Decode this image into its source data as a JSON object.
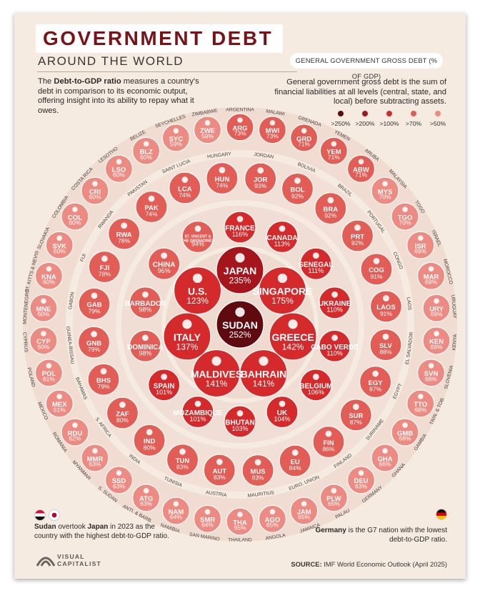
{
  "header": {
    "title": "GOVERNMENT DEBT",
    "subtitle": "AROUND THE WORLD",
    "intro_before": "The ",
    "intro_bold": "Debt-to-GDP ratio",
    "intro_after": " measures a country's debt in comparison to its economic output, offering insight into its ability to repay what it owes."
  },
  "legend": {
    "pill": "GENERAL GOVERNMENT GROSS DEBT (% OF GDP)",
    "description": "General government gross debt is the sum of financial liabilities at all levels (central, state, and local) before subtracting assets.",
    "bins": [
      {
        "label": ">250%",
        "color": "#5e0a0f"
      },
      {
        "label": ">200%",
        "color": "#a5151c"
      },
      {
        "label": ">100%",
        "color": "#d42a2c"
      },
      {
        "label": ">70%",
        "color": "#e25d55"
      },
      {
        "label": ">50%",
        "color": "#ed8b83"
      }
    ]
  },
  "chart_data": {
    "type": "bubble",
    "title": "Government Debt Around the World",
    "metric": "General government gross debt (% of GDP)",
    "layout": "concentric rings, highest debt at center",
    "rings": [
      {
        "ring": 0,
        "countries": [
          {
            "code": "SUDAN",
            "value": 252
          }
        ]
      },
      {
        "ring": 1,
        "countries": [
          {
            "code": "JAPAN",
            "value": 235
          },
          {
            "code": "SINGAPORE",
            "value": 175
          },
          {
            "code": "GREECE",
            "value": 142
          },
          {
            "code": "BAHRAIN",
            "value": 141
          },
          {
            "code": "MALDIVES",
            "value": 141
          },
          {
            "code": "ITALY",
            "value": 137
          },
          {
            "code": "U.S.",
            "value": 123
          }
        ]
      },
      {
        "ring": 2,
        "countries": [
          {
            "code": "FRANCE",
            "value": 116
          },
          {
            "code": "CANADA",
            "value": 113
          },
          {
            "code": "SENEGAL",
            "value": 111
          },
          {
            "code": "UKRAINE",
            "value": 110
          },
          {
            "code": "CABO VERDE",
            "value": 110
          },
          {
            "code": "BELGIUM",
            "value": 106
          },
          {
            "code": "UK",
            "value": 104
          },
          {
            "code": "BHUTAN",
            "value": 103
          },
          {
            "code": "MOZAMBIQUE",
            "value": 101
          },
          {
            "code": "SPAIN",
            "value": 101
          },
          {
            "code": "DOMINICA",
            "value": 98
          },
          {
            "code": "BARBADOS",
            "value": 98
          },
          {
            "code": "CHINA",
            "value": 96
          },
          {
            "code": "ST. VINCENT & THE GRENADINES",
            "value": 94
          }
        ]
      },
      {
        "ring": 3,
        "countries": [
          {
            "code": "JOR",
            "name": "JORDAN",
            "value": 93
          },
          {
            "code": "BOL",
            "name": "BOLIVIA",
            "value": 92
          },
          {
            "code": "BRA",
            "name": "BRAZIL",
            "value": 92
          },
          {
            "code": "PRT",
            "name": "PORTUGAL",
            "value": 92
          },
          {
            "code": "COG",
            "name": "CONGO",
            "value": 91
          },
          {
            "code": "LAOS",
            "name": "LAOS",
            "value": 91
          },
          {
            "code": "SLV",
            "name": "EL SALVADOR",
            "value": 88
          },
          {
            "code": "EGY",
            "name": "EGYPT",
            "value": 87
          },
          {
            "code": "SUR",
            "name": "SURINAME",
            "value": 87
          },
          {
            "code": "FIN",
            "name": "FINLAND",
            "value": 86
          },
          {
            "code": "EU",
            "name": "EURO. UNION",
            "value": 84
          },
          {
            "code": "MUS",
            "name": "MAURITIUS",
            "value": 83
          },
          {
            "code": "AUT",
            "name": "AUSTRIA",
            "value": 83
          },
          {
            "code": "TUN",
            "name": "TUNISIA",
            "value": 83
          },
          {
            "code": "IND",
            "name": "INDIA",
            "value": 80
          },
          {
            "code": "ZAF",
            "name": "S. AFRICA",
            "value": 80
          },
          {
            "code": "BHS",
            "name": "BAHAMAS",
            "value": 79
          },
          {
            "code": "GNB",
            "name": "GUINEA-BISSAU",
            "value": 79
          },
          {
            "code": "GAB",
            "name": "GABON",
            "value": 79
          },
          {
            "code": "FJI",
            "name": "FIJI",
            "value": 78
          },
          {
            "code": "RWA",
            "name": "RWANDA",
            "value": 78
          },
          {
            "code": "PAK",
            "name": "PAKISTAN",
            "value": 74
          },
          {
            "code": "LCA",
            "name": "SAINT LUCIA",
            "value": 74
          },
          {
            "code": "HUN",
            "name": "HUNGARY",
            "value": 74
          }
        ]
      },
      {
        "ring": 4,
        "countries": [
          {
            "code": "ARG",
            "name": "ARGENTINA",
            "value": 73
          },
          {
            "code": "MWI",
            "name": "MALAWI",
            "value": 73
          },
          {
            "code": "GRD",
            "name": "GRENADA",
            "value": 71
          },
          {
            "code": "YEM",
            "name": "YEMEN",
            "value": 71
          },
          {
            "code": "ABW",
            "name": "ARUBA",
            "value": 71
          },
          {
            "code": "MYS",
            "name": "MALAYSIA",
            "value": 70
          },
          {
            "code": "TGO",
            "name": "TOGO",
            "value": 70
          },
          {
            "code": "ISR",
            "name": "ISRAEL",
            "value": 69
          },
          {
            "code": "MAR",
            "name": "MOROCCO",
            "value": 69
          },
          {
            "code": "URY",
            "name": "URUGUAY",
            "value": 69
          },
          {
            "code": "KEN",
            "name": "KENYA",
            "value": 68
          },
          {
            "code": "SVN",
            "name": "SLOVENIA",
            "value": 68
          },
          {
            "code": "TTO",
            "name": "TRIN. & TOB.",
            "value": 68
          },
          {
            "code": "GMB",
            "name": "GAMBIA",
            "value": 68
          },
          {
            "code": "GHA",
            "name": "GHANA",
            "value": 66
          },
          {
            "code": "DEU",
            "name": "GERMANY",
            "value": 63
          },
          {
            "code": "PLW",
            "name": "PALAU",
            "value": 65
          },
          {
            "code": "JAM",
            "name": "JAMAICA",
            "value": 65
          },
          {
            "code": "AGO",
            "name": "ANGOLA",
            "value": 65
          },
          {
            "code": "THA",
            "name": "THAILAND",
            "value": 65
          },
          {
            "code": "SMR",
            "name": "SAN MARINO",
            "value": 64
          },
          {
            "code": "NAM",
            "name": "NAMIBIA",
            "value": 64
          },
          {
            "code": "ATG",
            "name": "ANTI. & BARB.",
            "value": 63
          },
          {
            "code": "SSD",
            "name": "S. SUDAN",
            "value": 63
          },
          {
            "code": "MMR",
            "name": "MYANMAR",
            "value": 63
          },
          {
            "code": "RDU",
            "name": "ROMANIA",
            "value": 62
          },
          {
            "code": "MEX",
            "name": "MEXICO",
            "value": 61
          },
          {
            "code": "POL",
            "name": "POLAND",
            "value": 61
          },
          {
            "code": "CYP",
            "name": "CYPRUS",
            "value": 60
          },
          {
            "code": "MNE",
            "name": "MONTENEGRO",
            "value": 60
          },
          {
            "code": "KNA",
            "name": "ST. KITTS & NEVIS",
            "value": 60
          },
          {
            "code": "SVK",
            "name": "SLOVAKIA",
            "value": 60
          },
          {
            "code": "COL",
            "name": "COLOMBIA",
            "value": 60
          },
          {
            "code": "CRI",
            "name": "COSTA RICA",
            "value": 60
          },
          {
            "code": "LSO",
            "name": "LESOTHO",
            "value": 60
          },
          {
            "code": "BLZ",
            "name": "BELIZE",
            "value": 60
          },
          {
            "code": "SYC",
            "name": "SEYCHELLES",
            "value": 59
          },
          {
            "code": "ZWE",
            "name": "ZIMBABWE",
            "value": 59
          }
        ]
      }
    ],
    "unit": "%"
  },
  "footer": {
    "left_bold_1": "Sudan",
    "left_mid": " overtook ",
    "left_bold_2": "Japan",
    "left_after": " in 2023 as the country with the highest debt-to-GDP ratio.",
    "right_bold": "Germany",
    "right_after": " is the G7 nation with the lowest debt-to-GDP ratio.",
    "logo_line1": "VISUAL",
    "logo_line2": "CAPITALIST",
    "source_label": "SOURCE:",
    "source_text": " IMF World Economic Outlook (April 2025)"
  }
}
